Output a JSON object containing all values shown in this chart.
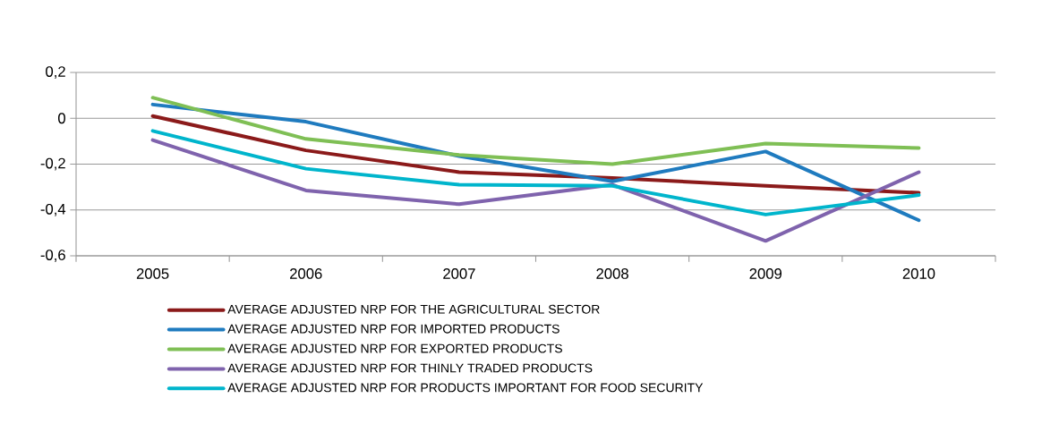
{
  "chart_data": {
    "type": "line",
    "categories": [
      "2005",
      "2006",
      "2007",
      "2008",
      "2009",
      "2010"
    ],
    "series": [
      {
        "name": "AVERAGE ADJUSTED NRP FOR THE AGRICULTURAL SECTOR",
        "color": "#8b1a1a",
        "values": [
          0.01,
          -0.14,
          -0.235,
          -0.26,
          -0.295,
          -0.325
        ]
      },
      {
        "name": "AVERAGE ADJUSTED NRP FOR IMPORTED PRODUCTS",
        "color": "#1f7bbf",
        "values": [
          0.06,
          -0.015,
          -0.165,
          -0.275,
          -0.145,
          -0.445
        ]
      },
      {
        "name": "AVERAGE ADJUSTED NRP FOR EXPORTED PRODUCTS",
        "color": "#7fbf55",
        "values": [
          0.09,
          -0.09,
          -0.16,
          -0.2,
          -0.11,
          -0.13
        ]
      },
      {
        "name": "AVERAGE ADJUSTED NRP FOR THINLY TRADED PRODUCTS",
        "color": "#7f63ad",
        "values": [
          -0.095,
          -0.315,
          -0.375,
          -0.29,
          -0.535,
          -0.235
        ]
      },
      {
        "name": "AVERAGE ADJUSTED NRP FOR PRODUCTS IMPORTANT FOR FOOD SECURITY",
        "color": "#00b5cc",
        "values": [
          -0.055,
          -0.22,
          -0.29,
          -0.295,
          -0.42,
          -0.335
        ]
      }
    ],
    "ylim": [
      -0.6,
      0.2
    ],
    "yticks": [
      {
        "value": 0.2,
        "label": "0,2"
      },
      0,
      {
        "value": -0.2,
        "label": "-0,2"
      },
      {
        "value": -0.4,
        "label": "-0,4"
      },
      {
        "value": -0.6,
        "label": "-0,6"
      }
    ],
    "grid": "y",
    "legend": "bottom"
  }
}
